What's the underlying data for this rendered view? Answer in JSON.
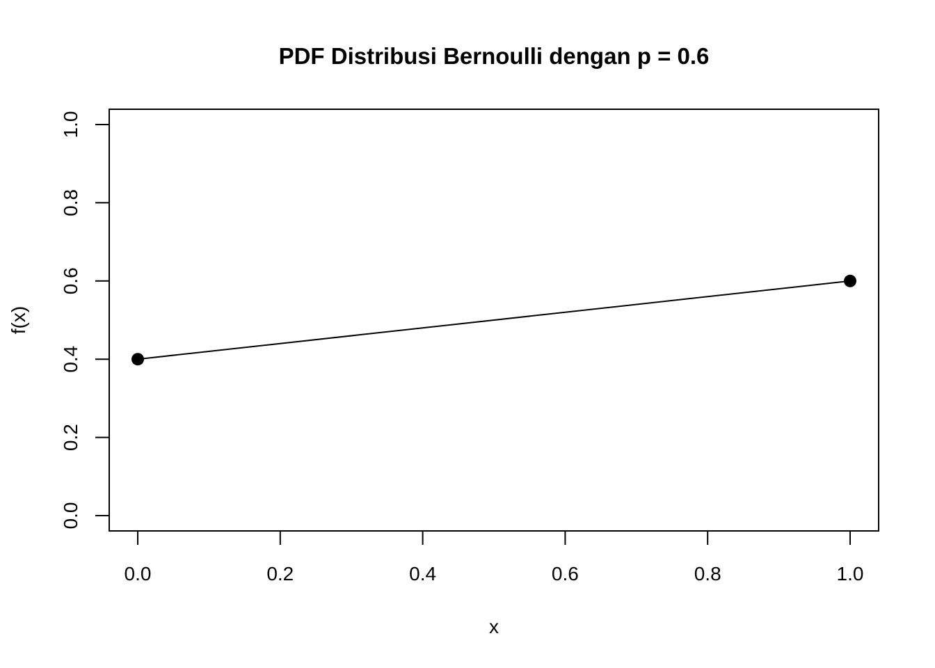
{
  "chart_data": {
    "type": "line",
    "title": "PDF Distribusi Bernoulli dengan p = 0.6",
    "xlabel": "x",
    "ylabel": "f(x)",
    "x": [
      0,
      1
    ],
    "series": [
      {
        "values": [
          0.4,
          0.6
        ],
        "markers": "filled-circle",
        "line": true
      }
    ],
    "xlim": [
      0,
      1
    ],
    "ylim": [
      0,
      1
    ],
    "xticks": [
      "0.0",
      "0.2",
      "0.4",
      "0.6",
      "0.8",
      "1.0"
    ],
    "yticks": [
      "0.0",
      "0.2",
      "0.4",
      "0.6",
      "0.8",
      "1.0"
    ],
    "grid": false,
    "line_color": "#000000"
  }
}
